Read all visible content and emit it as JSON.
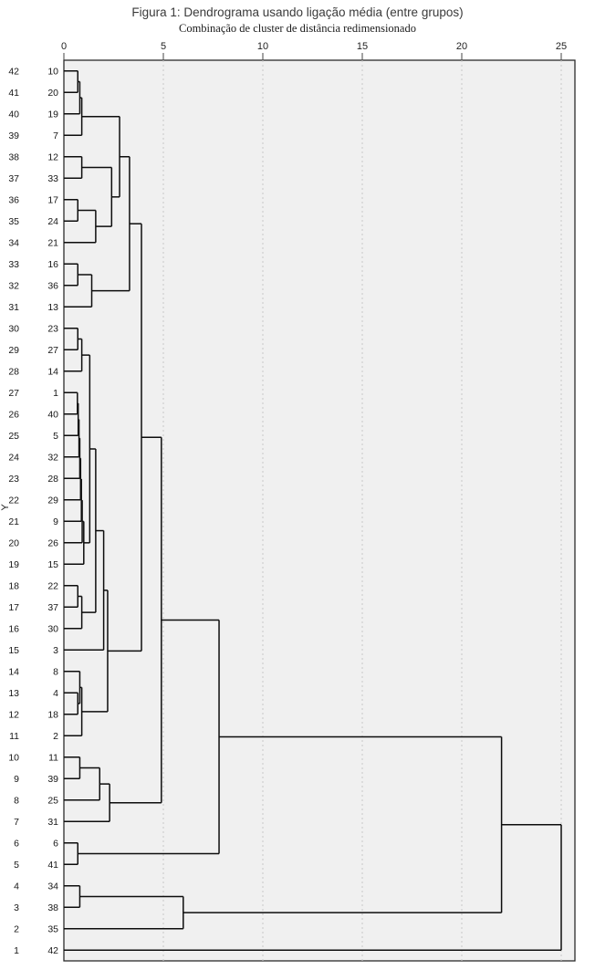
{
  "title": "Figura 1: Dendrograma usando ligação média (entre grupos)",
  "subtitle": "Combinação de cluster de distância redimensionado",
  "y_axis_label": "Y",
  "x_ticks": [
    0,
    5,
    10,
    15,
    20,
    25
  ],
  "colors": {
    "plot_background": "#f0f0f0",
    "page_background": "#ffffff",
    "tree_line": "#0d0d0d",
    "grid_line": "#c9c9c9"
  },
  "rows": [
    {
      "index": "42",
      "case": "10"
    },
    {
      "index": "41",
      "case": "20"
    },
    {
      "index": "40",
      "case": "19"
    },
    {
      "index": "39",
      "case": "7"
    },
    {
      "index": "38",
      "case": "12"
    },
    {
      "index": "37",
      "case": "33"
    },
    {
      "index": "36",
      "case": "17"
    },
    {
      "index": "35",
      "case": "24"
    },
    {
      "index": "34",
      "case": "21"
    },
    {
      "index": "33",
      "case": "16"
    },
    {
      "index": "32",
      "case": "36"
    },
    {
      "index": "31",
      "case": "13"
    },
    {
      "index": "30",
      "case": "23"
    },
    {
      "index": "29",
      "case": "27"
    },
    {
      "index": "28",
      "case": "14"
    },
    {
      "index": "27",
      "case": "1"
    },
    {
      "index": "26",
      "case": "40"
    },
    {
      "index": "25",
      "case": "5"
    },
    {
      "index": "24",
      "case": "32"
    },
    {
      "index": "23",
      "case": "28"
    },
    {
      "index": "22",
      "case": "29"
    },
    {
      "index": "21",
      "case": "9"
    },
    {
      "index": "20",
      "case": "26"
    },
    {
      "index": "19",
      "case": "15"
    },
    {
      "index": "18",
      "case": "22"
    },
    {
      "index": "17",
      "case": "37"
    },
    {
      "index": "16",
      "case": "30"
    },
    {
      "index": "15",
      "case": "3"
    },
    {
      "index": "14",
      "case": "8"
    },
    {
      "index": "13",
      "case": "4"
    },
    {
      "index": "12",
      "case": "18"
    },
    {
      "index": "11",
      "case": "2"
    },
    {
      "index": "10",
      "case": "11"
    },
    {
      "index": "9",
      "case": "39"
    },
    {
      "index": "8",
      "case": "25"
    },
    {
      "index": "7",
      "case": "31"
    },
    {
      "index": "6",
      "case": "6"
    },
    {
      "index": "5",
      "case": "41"
    },
    {
      "index": "4",
      "case": "34"
    },
    {
      "index": "3",
      "case": "38"
    },
    {
      "index": "2",
      "case": "35"
    },
    {
      "index": "1",
      "case": "42"
    }
  ],
  "chart_data": {
    "type": "dendrogram",
    "orientation": "horizontal",
    "title": "Figura 1: Dendrograma usando ligação média (entre grupos)",
    "subtitle": "Combinação de cluster de distância redimensionado",
    "x_range": [
      0,
      25
    ],
    "x_ticks": [
      0,
      5,
      10,
      15,
      20,
      25
    ],
    "grid": "dashed-vertical",
    "leaf_order": [
      "10",
      "20",
      "19",
      "7",
      "12",
      "33",
      "17",
      "24",
      "21",
      "16",
      "36",
      "13",
      "23",
      "27",
      "14",
      "1",
      "40",
      "5",
      "32",
      "28",
      "29",
      "9",
      "26",
      "15",
      "22",
      "37",
      "30",
      "3",
      "8",
      "4",
      "18",
      "2",
      "11",
      "39",
      "25",
      "31",
      "6",
      "41",
      "34",
      "38",
      "35",
      "42"
    ],
    "tree": {
      "h": 25,
      "c": [
        {
          "h": 22,
          "c": [
            {
              "h": 7.8,
              "c": [
                {
                  "h": 4.9,
                  "c": [
                    {
                      "h": 3.9,
                      "c": [
                        {
                          "h": 3.3,
                          "c": [
                            {
                              "h": 2.8,
                              "c": [
                                {
                                  "h": 0.9,
                                  "c": [
                                    {
                                      "h": 0.8,
                                      "c": [
                                        {
                                          "h": 0.7,
                                          "c": [
                                            "10",
                                            "20"
                                          ]
                                        },
                                        "19"
                                      ]
                                    },
                                    "7"
                                  ]
                                },
                                {
                                  "h": 2.4,
                                  "c": [
                                    {
                                      "h": 0.9,
                                      "c": [
                                        "12",
                                        "33"
                                      ]
                                    },
                                    {
                                      "h": 1.6,
                                      "c": [
                                        {
                                          "h": 0.7,
                                          "c": [
                                            "17",
                                            "24"
                                          ]
                                        },
                                        "21"
                                      ]
                                    }
                                  ]
                                }
                              ]
                            },
                            {
                              "h": 1.4,
                              "c": [
                                {
                                  "h": 0.7,
                                  "c": [
                                    "16",
                                    "36"
                                  ]
                                },
                                "13"
                              ]
                            }
                          ]
                        },
                        {
                          "h": 2.2,
                          "c": [
                            {
                              "h": 2.0,
                              "c": [
                                {
                                  "h": 1.6,
                                  "c": [
                                    {
                                      "h": 1.3,
                                      "c": [
                                        {
                                          "h": 0.9,
                                          "c": [
                                            {
                                              "h": 0.7,
                                              "c": [
                                                "23",
                                                "27"
                                              ]
                                            },
                                            "14"
                                          ]
                                        },
                                        {
                                          "h": 1.0,
                                          "c": [
                                            {
                                              "h": 0.92,
                                              "c": [
                                                {
                                                  "h": 0.88,
                                                  "c": [
                                                    {
                                                      "h": 0.84,
                                                      "c": [
                                                        {
                                                          "h": 0.8,
                                                          "c": [
                                                            {
                                                              "h": 0.76,
                                                              "c": [
                                                                {
                                                                  "h": 0.72,
                                                                  "c": [
                                                                    {
                                                                      "h": 0.68,
                                                                      "c": [
                                                                        "1",
                                                                        "40"
                                                                      ]
                                                                    },
                                                                    "5"
                                                                  ]
                                                                },
                                                                "32"
                                                              ]
                                                            },
                                                            "28"
                                                          ]
                                                        },
                                                        "29"
                                                      ]
                                                    },
                                                    "9"
                                                  ]
                                                },
                                                "26"
                                              ]
                                            },
                                            "15"
                                          ]
                                        }
                                      ]
                                    },
                                    {
                                      "h": 0.9,
                                      "c": [
                                        {
                                          "h": 0.7,
                                          "c": [
                                            "22",
                                            "37"
                                          ]
                                        },
                                        "30"
                                      ]
                                    }
                                  ]
                                },
                                "3"
                              ]
                            },
                            {
                              "h": 0.9,
                              "c": [
                                {
                                  "h": 0.8,
                                  "c": [
                                    "8",
                                    {
                                      "h": 0.7,
                                      "c": [
                                        "4",
                                        "18"
                                      ]
                                    }
                                  ]
                                },
                                "2"
                              ]
                            }
                          ]
                        }
                      ]
                    },
                    {
                      "h": 2.3,
                      "c": [
                        {
                          "h": 1.8,
                          "c": [
                            {
                              "h": 0.8,
                              "c": [
                                "11",
                                "39"
                              ]
                            },
                            "25"
                          ]
                        },
                        "31"
                      ]
                    }
                  ]
                },
                {
                  "h": 0.7,
                  "c": [
                    "6",
                    "41"
                  ]
                }
              ]
            },
            {
              "h": 6,
              "c": [
                {
                  "h": 0.8,
                  "c": [
                    "34",
                    "38"
                  ]
                },
                "35"
              ]
            }
          ]
        },
        "42"
      ]
    }
  }
}
